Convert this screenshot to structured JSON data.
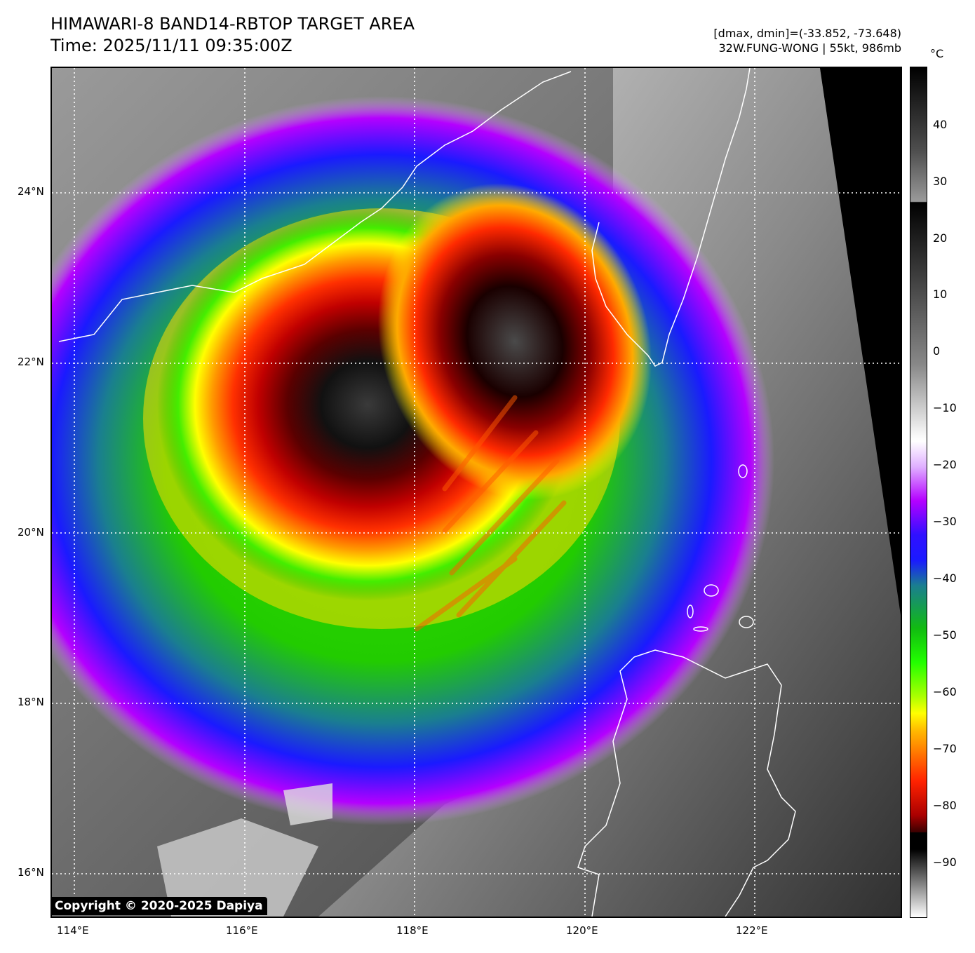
{
  "header": {
    "title_line1": "HIMAWARI-8 BAND14-RBTOP TARGET AREA",
    "title_line2": "Time: 2025/11/11 09:35:00Z",
    "info_line1": "[dmax, dmin]=(-33.852, -73.648)",
    "info_line2": "32W.FUNG-WONG | 55kt, 986mb"
  },
  "map": {
    "lat_labels": [
      "24°N",
      "22°N",
      "20°N",
      "18°N",
      "16°N"
    ],
    "lon_labels": [
      "114°E",
      "116°E",
      "118°E",
      "120°E",
      "122°E"
    ]
  },
  "colorbar": {
    "unit": "°C",
    "ticks": [
      "40",
      "30",
      "20",
      "10",
      "0",
      "−10",
      "−20",
      "−30",
      "−40",
      "−50",
      "−60",
      "−70",
      "−80",
      "−90"
    ],
    "colors": {
      "black": "#000000",
      "dark_red": "#7a0000",
      "red": "#ff2a00",
      "orange": "#ff9a00",
      "yellow": "#ffff00",
      "green": "#22dd00",
      "teal": "#1a7f8f",
      "blue": "#1a1aff",
      "purple": "#b400ff",
      "white": "#ffffff",
      "gray": "#808080"
    }
  },
  "copyright": "Copyright © 2020-2025 Dapiya"
}
